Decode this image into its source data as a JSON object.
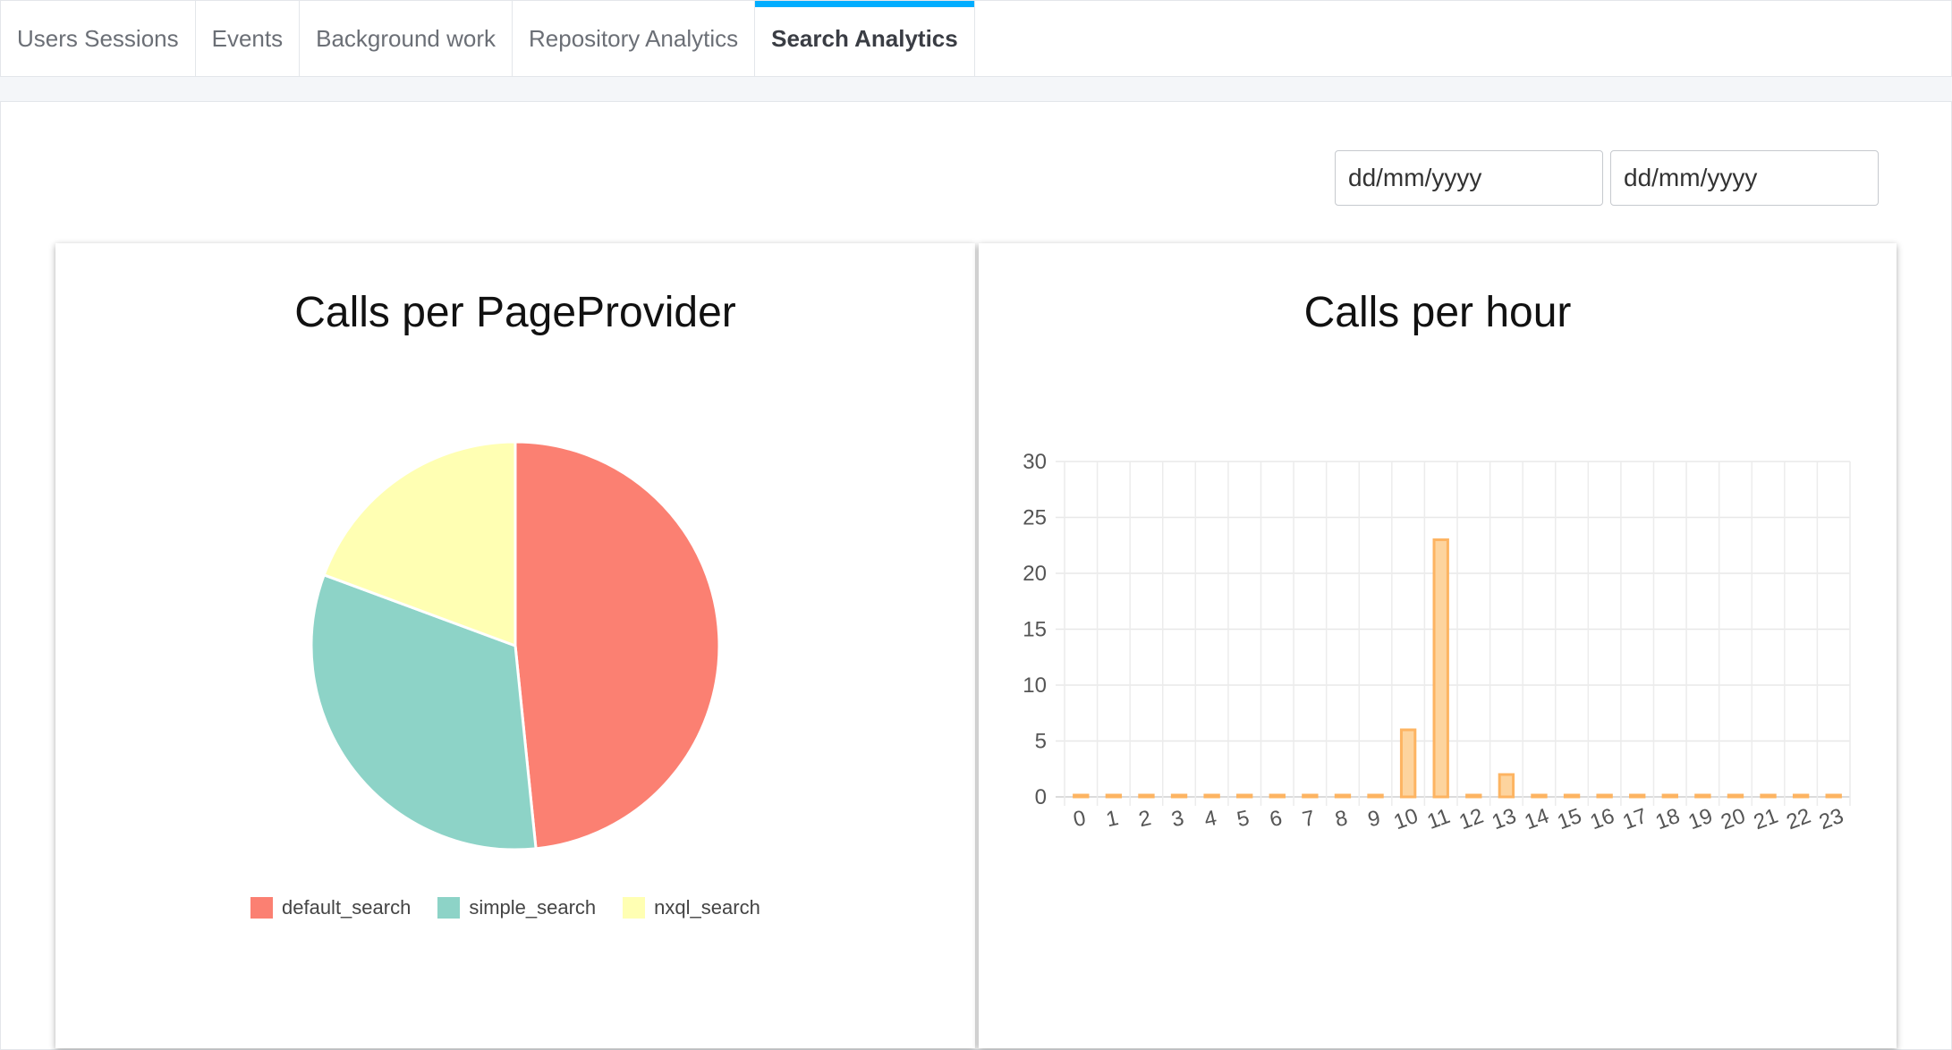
{
  "tabs": [
    {
      "label": "Users Sessions",
      "active": false
    },
    {
      "label": "Events",
      "active": false
    },
    {
      "label": "Background work",
      "active": false
    },
    {
      "label": "Repository Analytics",
      "active": false
    },
    {
      "label": "Search Analytics",
      "active": true
    }
  ],
  "date_range": {
    "start_placeholder": "dd/mm/yyyy",
    "end_placeholder": "dd/mm/yyyy"
  },
  "colors": {
    "tab_accent": "#00adff",
    "default_search": "#fb8072",
    "simple_search": "#8dd3c7",
    "nxql_search": "#ffffb3",
    "bar_fill": "#fdd49e",
    "bar_stroke": "#fdb462"
  },
  "chart_data": [
    {
      "type": "pie",
      "title": "Calls per PageProvider",
      "legend_position": "bottom",
      "slices": [
        {
          "label": "default_search",
          "value": 15
        },
        {
          "label": "simple_search",
          "value": 10
        },
        {
          "label": "nxql_search",
          "value": 6
        }
      ]
    },
    {
      "type": "bar",
      "title": "Calls per hour",
      "xlabel": "",
      "ylabel": "",
      "categories": [
        "0",
        "1",
        "2",
        "3",
        "4",
        "5",
        "6",
        "7",
        "8",
        "9",
        "10",
        "11",
        "12",
        "13",
        "14",
        "15",
        "16",
        "17",
        "18",
        "19",
        "20",
        "21",
        "22",
        "23"
      ],
      "values": [
        0,
        0,
        0,
        0,
        0,
        0,
        0,
        0,
        0,
        0,
        6,
        23,
        0,
        2,
        0,
        0,
        0,
        0,
        0,
        0,
        0,
        0,
        0,
        0
      ],
      "ylim": [
        0,
        30
      ],
      "yticks": [
        0,
        5,
        10,
        15,
        20,
        25,
        30
      ],
      "grid": true,
      "legend": false
    }
  ]
}
